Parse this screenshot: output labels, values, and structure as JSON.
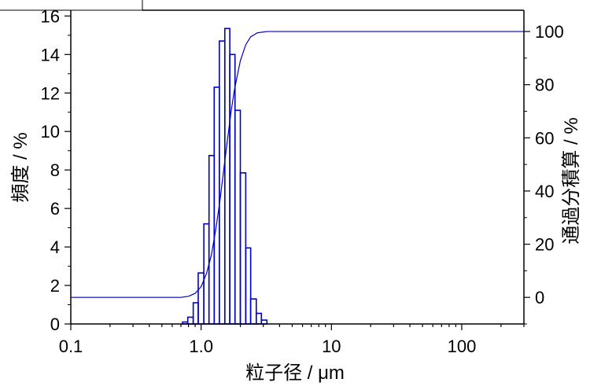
{
  "chart_data": {
    "type": "bar",
    "xlabel": "粒子径 / μm",
    "ylabel_left": "頻度 / %",
    "ylabel_right": "通過分積算 / %",
    "x_scale": "log",
    "xlim": [
      0.1,
      300
    ],
    "ylim_left": [
      0,
      16.3
    ],
    "ylim_right": [
      -10,
      108
    ],
    "x_ticks": [
      {
        "value": 0.1,
        "label": "0.1"
      },
      {
        "value": 1,
        "label": "1.0"
      },
      {
        "value": 10,
        "label": "10"
      },
      {
        "value": 100,
        "label": "100"
      }
    ],
    "y_left_ticks": [
      0,
      2,
      4,
      6,
      8,
      10,
      12,
      14,
      16
    ],
    "y_right_ticks": [
      0,
      20,
      40,
      60,
      80,
      100
    ],
    "series": [
      {
        "type": "bar",
        "axis": "left",
        "bins": [
          {
            "x0": 0.72,
            "x1": 0.79,
            "value": 0.1
          },
          {
            "x0": 0.79,
            "x1": 0.87,
            "value": 0.35
          },
          {
            "x0": 0.87,
            "x1": 0.95,
            "value": 1.1
          },
          {
            "x0": 0.95,
            "x1": 1.05,
            "value": 2.65
          },
          {
            "x0": 1.05,
            "x1": 1.15,
            "value": 5.2
          },
          {
            "x0": 1.15,
            "x1": 1.26,
            "value": 8.75
          },
          {
            "x0": 1.26,
            "x1": 1.38,
            "value": 12.3
          },
          {
            "x0": 1.38,
            "x1": 1.52,
            "value": 14.7
          },
          {
            "x0": 1.52,
            "x1": 1.66,
            "value": 15.35
          },
          {
            "x0": 1.66,
            "x1": 1.82,
            "value": 14.0
          },
          {
            "x0": 1.82,
            "x1": 2.0,
            "value": 11.1
          },
          {
            "x0": 2.0,
            "x1": 2.2,
            "value": 7.85
          },
          {
            "x0": 2.2,
            "x1": 2.4,
            "value": 3.95
          },
          {
            "x0": 2.4,
            "x1": 2.65,
            "value": 1.3
          },
          {
            "x0": 2.65,
            "x1": 2.9,
            "value": 0.55
          },
          {
            "x0": 2.9,
            "x1": 3.2,
            "value": 0.2
          }
        ]
      },
      {
        "type": "line",
        "axis": "right",
        "points": [
          [
            0.1,
            0
          ],
          [
            0.7,
            0
          ],
          [
            0.8,
            0.4
          ],
          [
            0.9,
            1.5
          ],
          [
            1.0,
            4
          ],
          [
            1.1,
            9
          ],
          [
            1.2,
            16
          ],
          [
            1.3,
            26
          ],
          [
            1.4,
            37
          ],
          [
            1.5,
            49
          ],
          [
            1.6,
            60
          ],
          [
            1.7,
            70
          ],
          [
            1.8,
            78
          ],
          [
            2.0,
            89
          ],
          [
            2.2,
            95
          ],
          [
            2.4,
            98
          ],
          [
            2.7,
            99.5
          ],
          [
            3.2,
            100
          ],
          [
            300,
            100
          ]
        ]
      }
    ],
    "colors": {
      "series": "#0000cc",
      "axes": "#000000"
    }
  }
}
